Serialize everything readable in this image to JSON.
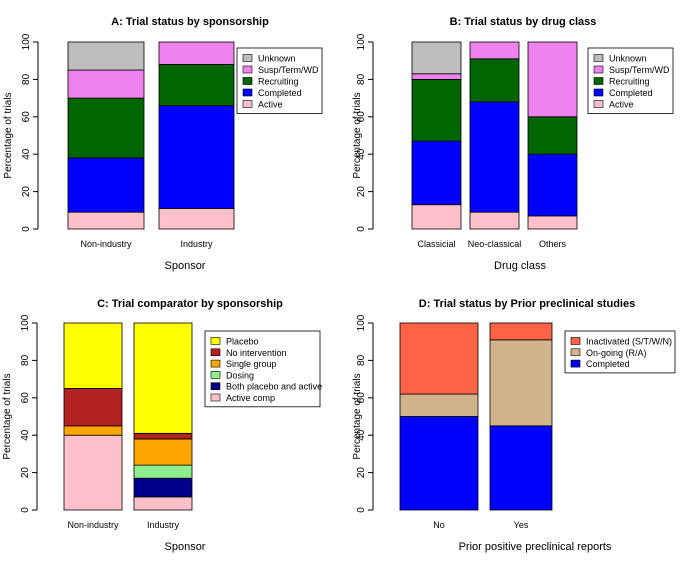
{
  "chart_data": [
    {
      "type": "bar",
      "stacked": true,
      "title": "A: Trial status by sponsorship",
      "xlabel": "Sponsor",
      "ylabel": "Percentage of trials",
      "ylim": [
        0,
        100
      ],
      "yticks": [
        0,
        20,
        40,
        60,
        80,
        100
      ],
      "categories": [
        "Non-industry",
        "Industry"
      ],
      "legend_position": "top-right",
      "series": [
        {
          "name": "Active",
          "color": "#FFC0CB",
          "values": [
            9,
            11
          ]
        },
        {
          "name": "Completed",
          "color": "#0000FF",
          "values": [
            29,
            55
          ]
        },
        {
          "name": "Recruiting",
          "color": "#006400",
          "values": [
            32,
            22
          ]
        },
        {
          "name": "Susp/Term/WD",
          "color": "#EE82EE",
          "values": [
            15,
            12
          ]
        },
        {
          "name": "Unknown",
          "color": "#BEBEBE",
          "values": [
            15,
            0
          ]
        }
      ]
    },
    {
      "type": "bar",
      "stacked": true,
      "title": "B: Trial status by drug class",
      "xlabel": "Drug class",
      "ylabel": "Percentage of trials",
      "ylim": [
        0,
        100
      ],
      "yticks": [
        0,
        20,
        40,
        60,
        80,
        100
      ],
      "categories": [
        "Classicial",
        "Neo-classical",
        "Others"
      ],
      "legend_position": "top-right",
      "series": [
        {
          "name": "Active",
          "color": "#FFC0CB",
          "values": [
            13,
            9,
            7
          ]
        },
        {
          "name": "Completed",
          "color": "#0000FF",
          "values": [
            34,
            59,
            33
          ]
        },
        {
          "name": "Recruiting",
          "color": "#006400",
          "values": [
            33,
            23,
            20
          ]
        },
        {
          "name": "Susp/Term/WD",
          "color": "#EE82EE",
          "values": [
            3,
            9,
            40
          ]
        },
        {
          "name": "Unknown",
          "color": "#BEBEBE",
          "values": [
            17,
            0,
            0
          ]
        }
      ]
    },
    {
      "type": "bar",
      "stacked": true,
      "title": "C: Trial comparator by sponsorship",
      "xlabel": "Sponsor",
      "ylabel": "Percentage of trials",
      "ylim": [
        0,
        100
      ],
      "yticks": [
        0,
        20,
        40,
        60,
        80,
        100
      ],
      "categories": [
        "Non-industry",
        "Industry"
      ],
      "legend_position": "top-right",
      "series": [
        {
          "name": "Active comp",
          "color": "#FFC0CB",
          "values": [
            40,
            7
          ]
        },
        {
          "name": "Both placebo and active",
          "color": "#00008B",
          "values": [
            0,
            10
          ]
        },
        {
          "name": "Dosing",
          "color": "#90EE90",
          "values": [
            0,
            7
          ]
        },
        {
          "name": "Single group",
          "color": "#FFA500",
          "values": [
            5,
            14
          ]
        },
        {
          "name": "No intervention",
          "color": "#B22222",
          "values": [
            20,
            3
          ]
        },
        {
          "name": "Placebo",
          "color": "#FFFF00",
          "values": [
            35,
            59
          ]
        }
      ]
    },
    {
      "type": "bar",
      "stacked": true,
      "title": "D: Trial status by Prior preclinical studies",
      "xlabel": "Prior positive preclinical reports",
      "ylabel": "Percentage of trials",
      "ylim": [
        0,
        100
      ],
      "yticks": [
        0,
        20,
        40,
        60,
        80,
        100
      ],
      "categories": [
        "No",
        "Yes"
      ],
      "legend_position": "top-right",
      "series": [
        {
          "name": "Completed",
          "color": "#0000FF",
          "values": [
            50,
            45
          ]
        },
        {
          "name": "On-going (R/A)",
          "color": "#D2B48C",
          "values": [
            12,
            46
          ]
        },
        {
          "name": "Inactivated (S/T/W/N)",
          "color": "#FF6347",
          "values": [
            38,
            9
          ]
        }
      ]
    }
  ]
}
